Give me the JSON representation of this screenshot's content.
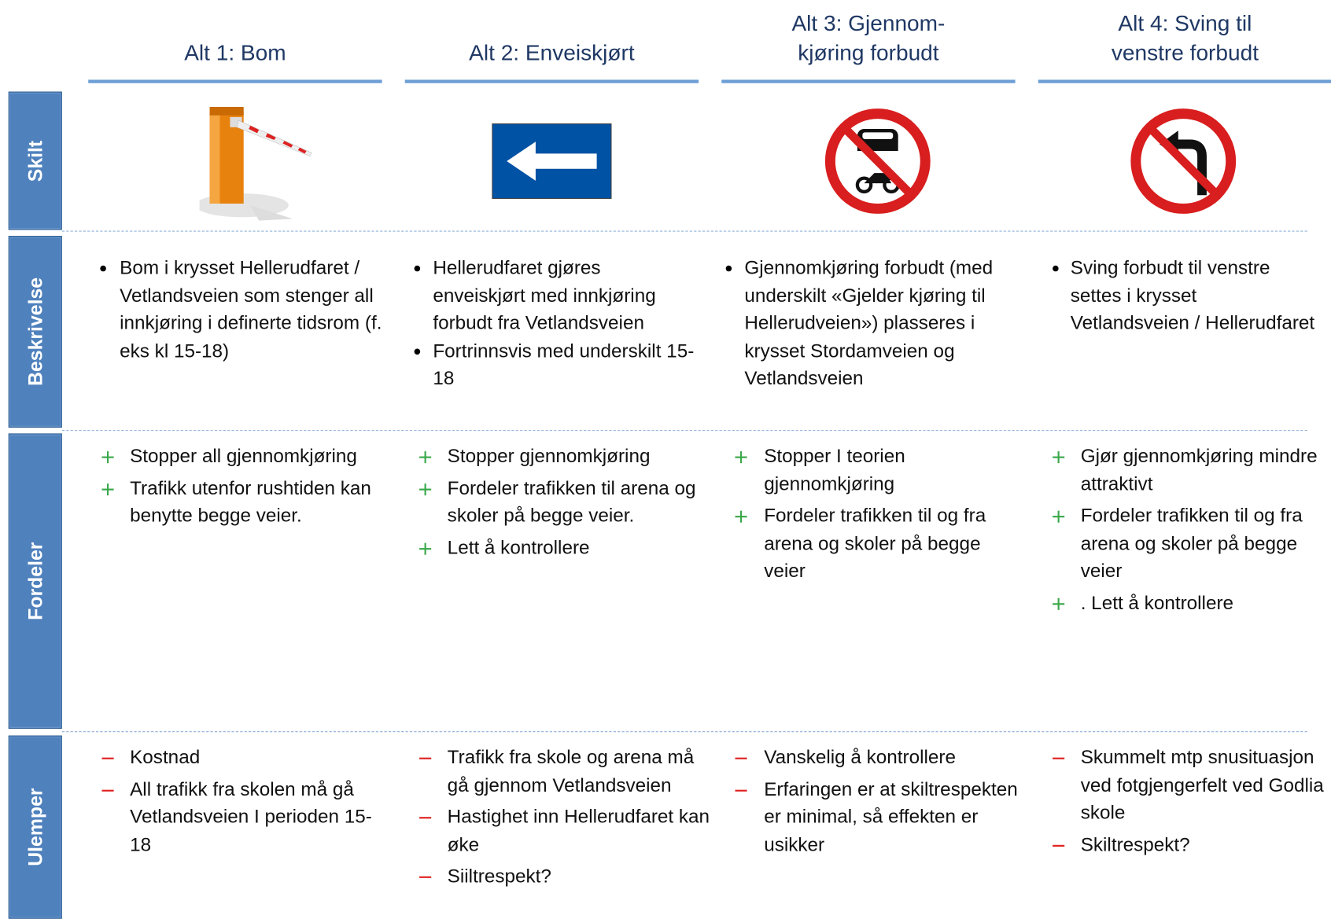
{
  "columns": [
    {
      "title": [
        "Alt 1: Bom"
      ],
      "description": [
        "Bom i  krysset Hellerudfaret / Vetlandsveien som stenger all innkjøring i definerte tidsrom (f. eks kl 15-18)"
      ],
      "advantages": [
        "Stopper all gjennomkjøring",
        "Trafikk utenfor rushtiden kan benytte begge veier."
      ],
      "disadvantages": [
        "Kostnad",
        "All trafikk fra skolen må gå Vetlandsveien I perioden 15-18"
      ]
    },
    {
      "title": [
        "Alt 2: Enveiskjørt"
      ],
      "description": [
        "Hellerudfaret gjøres enveiskjørt med innkjøring forbudt fra Vetlandsveien",
        "Fortrinnsvis med underskilt 15-18"
      ],
      "advantages": [
        "Stopper gjennomkjøring",
        "Fordeler trafikken til arena og skoler på begge veier.",
        "Lett å kontrollere"
      ],
      "disadvantages": [
        "Trafikk fra skole og arena må gå gjennom Vetlandsveien",
        "Hastighet inn Hellerudfaret kan øke",
        "Siiltrespekt?"
      ]
    },
    {
      "title": [
        "Alt 3: Gjennom-",
        "kjøring forbudt"
      ],
      "description": [
        "Gjennomkjøring forbudt (med underskilt «Gjelder kjøring til Hellerudveien») plasseres i krysset Stordamveien og Vetlandsveien"
      ],
      "advantages": [
        "Stopper I teorien gjennomkjøring",
        "Fordeler trafikken til og fra arena og skoler på begge veier"
      ],
      "disadvantages": [
        "Vanskelig å kontrollere",
        "Erfaringen er at skiltrespekten er minimal, så effekten er usikker"
      ]
    },
    {
      "title": [
        "Alt 4: Sving til",
        "venstre forbudt"
      ],
      "description": [
        "Sving forbudt til venstre settes i krysset Vetlandsveien / Hellerudfaret"
      ],
      "advantages": [
        "Gjør gjennomkjøring mindre attraktivt",
        "Fordeler trafikken til og fra arena og skoler på begge veier",
        ". Lett å kontrollere"
      ],
      "disadvantages": [
        "Skummelt mtp snusituasjon ved fotgjengerfelt ved Godlia skole",
        "Skiltrespekt?"
      ]
    }
  ],
  "row_labels": [
    "Skilt",
    "Beskrivelse",
    "Fordeler",
    "Ulemper"
  ]
}
